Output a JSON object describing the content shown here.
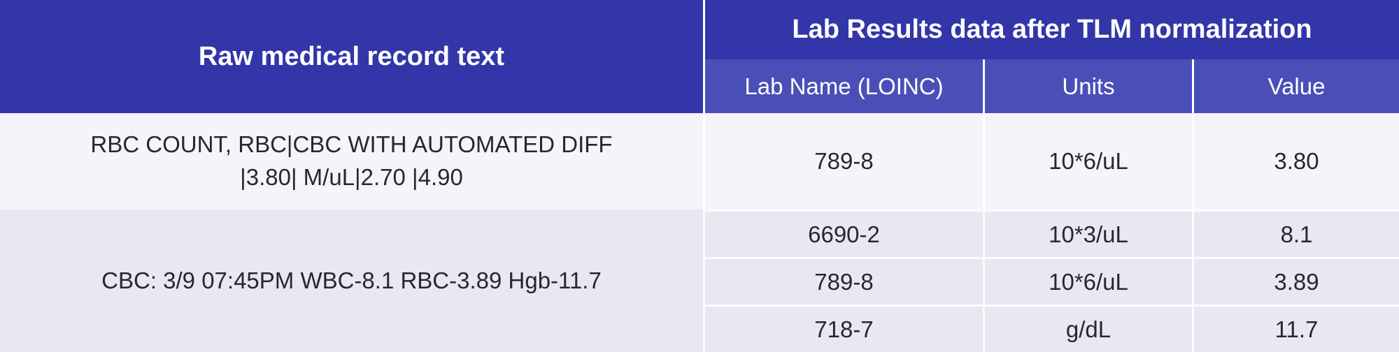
{
  "header": {
    "left": "Raw medical record text",
    "right": "Lab Results data after TLM normalization"
  },
  "columns": {
    "loinc": "Lab Name (LOINC)",
    "units": "Units",
    "value": "Value"
  },
  "rows": [
    {
      "raw_line1": "RBC COUNT, RBC|CBC WITH AUTOMATED DIFF",
      "raw_line2": "|3.80| M/uL|2.70 |4.90",
      "results": [
        {
          "loinc": "789-8",
          "units": "10*6/uL",
          "value": "3.80"
        }
      ]
    },
    {
      "raw": "CBC: 3/9 07:45PM WBC-8.1 RBC-3.89 Hgb-11.7",
      "results": [
        {
          "loinc": "6690-2",
          "units": "10*3/uL",
          "value": "8.1"
        },
        {
          "loinc": "789-8",
          "units": "10*6/uL",
          "value": "3.89"
        },
        {
          "loinc": "718-7",
          "units": "g/dL",
          "value": "11.7"
        }
      ]
    }
  ],
  "colors": {
    "header_dark_blue": "#3236a8",
    "header_medium_blue": "#4a4fb8",
    "row_light": "#f4f4fa",
    "row_lavender": "#e8e8f3",
    "divider_white": "#ffffff",
    "body_text": "#272730",
    "header_text": "#ffffff"
  },
  "chart_data": {
    "type": "table",
    "title": "Lab Results data after TLM normalization",
    "columns": [
      "Raw medical record text",
      "Lab Name (LOINC)",
      "Units",
      "Value"
    ],
    "rows": [
      [
        "RBC COUNT, RBC|CBC WITH AUTOMATED DIFF |3.80| M/uL|2.70 |4.90",
        "789-8",
        "10*6/uL",
        "3.80"
      ],
      [
        "CBC: 3/9 07:45PM WBC-8.1 RBC-3.89 Hgb-11.7",
        "6690-2",
        "10*3/uL",
        "8.1"
      ],
      [
        "CBC: 3/9 07:45PM WBC-8.1 RBC-3.89 Hgb-11.7",
        "789-8",
        "10*6/uL",
        "3.89"
      ],
      [
        "CBC: 3/9 07:45PM WBC-8.1 RBC-3.89 Hgb-11.7",
        "718-7",
        "g/dL",
        "11.7"
      ]
    ]
  }
}
